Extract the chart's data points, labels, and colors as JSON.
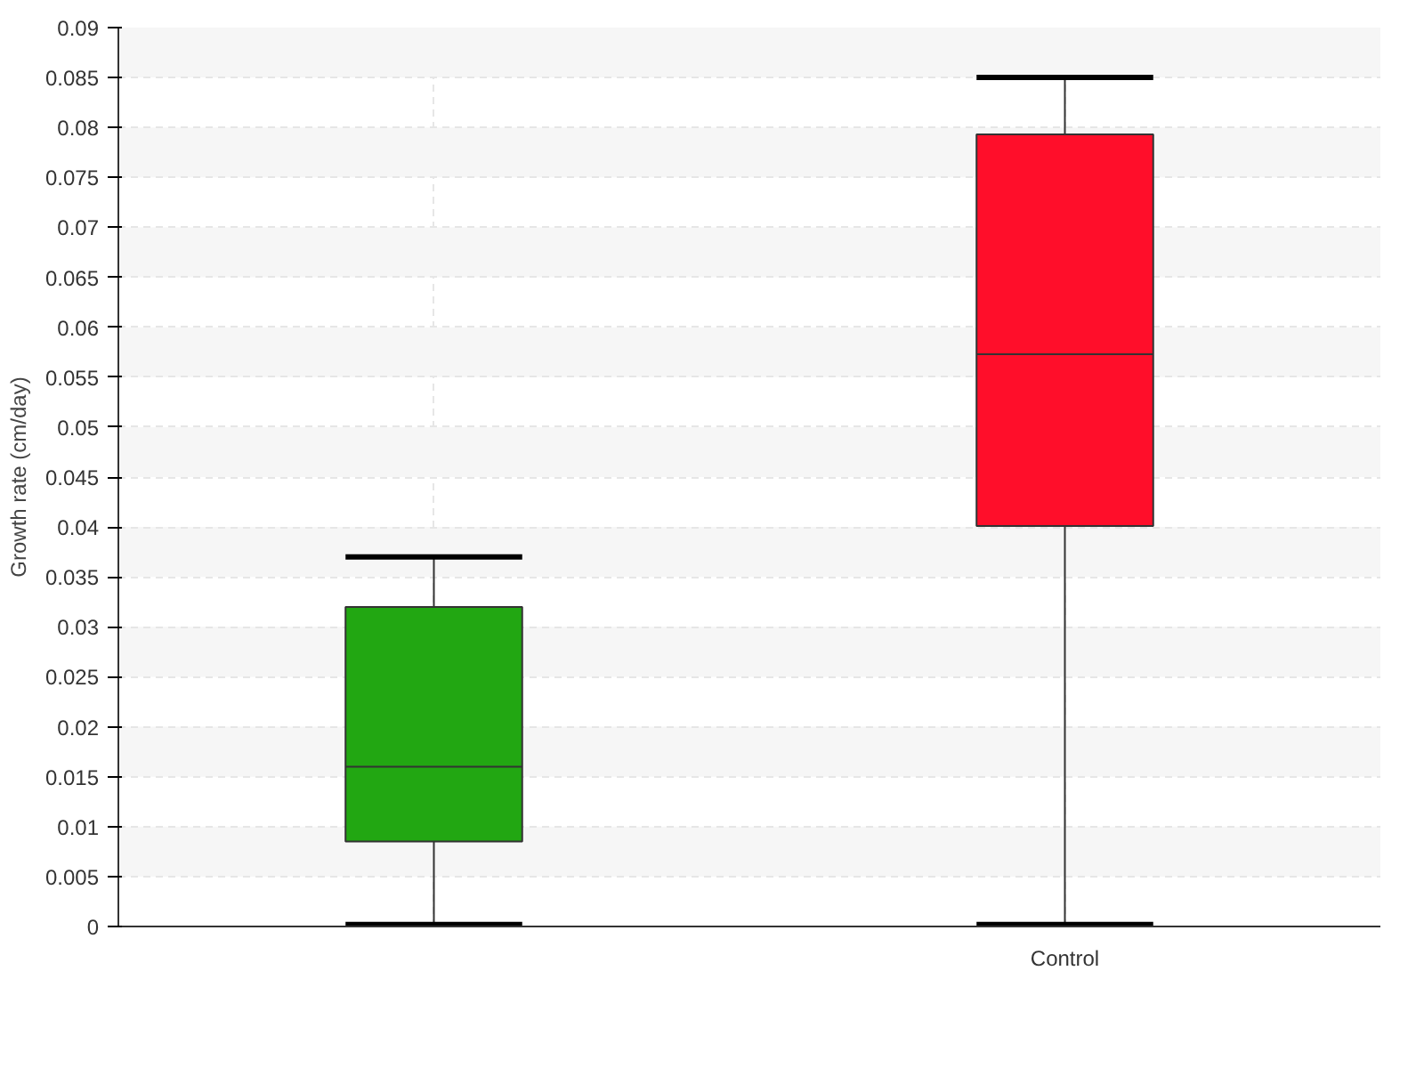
{
  "chart_data": {
    "type": "box",
    "ylabel": "Growth rate (cm/day)",
    "categories": [
      null,
      "Control"
    ],
    "colors": [
      "#22a712",
      "#ff0e2a"
    ],
    "boxes": [
      {
        "low": 0.0002,
        "q1": 0.0085,
        "median": 0.016,
        "q3": 0.032,
        "high": 0.037
      },
      {
        "low": 0.0002,
        "q1": 0.0401,
        "median": 0.0573,
        "q3": 0.0793,
        "high": 0.085
      }
    ],
    "ylim": [
      0,
      0.09
    ],
    "yticks": [
      0,
      0.005,
      0.01,
      0.015,
      0.02,
      0.025,
      0.03,
      0.035,
      0.04,
      0.045,
      0.05,
      0.055,
      0.06,
      0.065,
      0.07,
      0.075,
      0.08,
      0.085,
      0.09
    ],
    "grid": true
  }
}
